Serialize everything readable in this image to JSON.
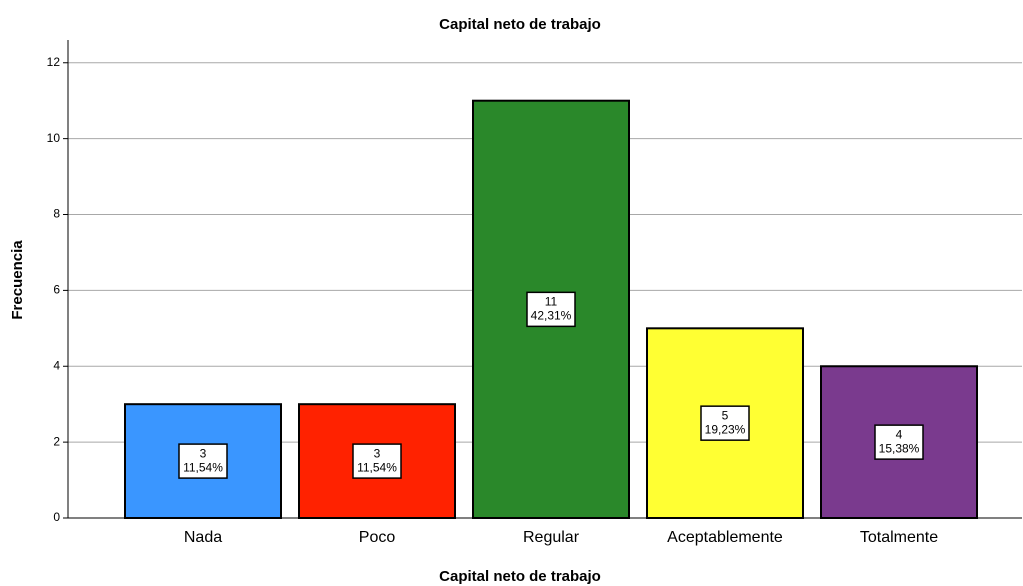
{
  "chart_data": {
    "type": "bar",
    "title": "Capital neto de trabajo",
    "x_label": "Capital neto de trabajo",
    "y_label": "Frecuencia",
    "categories": [
      "Nada",
      "Poco",
      "Regular",
      "Aceptablemente",
      "Totalmente"
    ],
    "values": [
      3,
      3,
      11,
      5,
      4
    ],
    "percentages": [
      11.54,
      11.54,
      42.31,
      19.23,
      15.38
    ],
    "percentage_labels": [
      "11,54%",
      "11,54%",
      "42,31%",
      "19,23%",
      "15,38%"
    ],
    "colors": [
      "#3a96ff",
      "#ff2200",
      "#2a882a",
      "#ffff33",
      "#7a3a8e"
    ],
    "ylim": [
      0,
      12.6
    ],
    "yticks": [
      0,
      2,
      4,
      6,
      8,
      10,
      12
    ],
    "grid": true
  }
}
